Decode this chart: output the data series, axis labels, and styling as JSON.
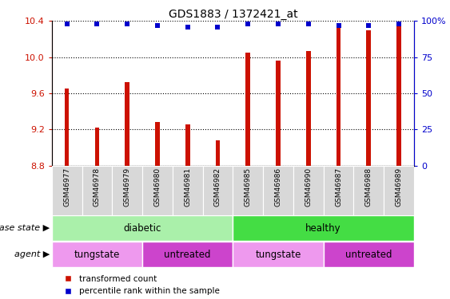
{
  "title": "GDS1883 / 1372421_at",
  "samples": [
    "GSM46977",
    "GSM46978",
    "GSM46979",
    "GSM46980",
    "GSM46981",
    "GSM46982",
    "GSM46985",
    "GSM46986",
    "GSM46990",
    "GSM46987",
    "GSM46988",
    "GSM46989"
  ],
  "bar_values": [
    9.65,
    9.22,
    9.72,
    9.28,
    9.26,
    9.08,
    10.05,
    9.96,
    10.07,
    10.32,
    10.3,
    10.38
  ],
  "percentile_y": [
    98,
    98,
    98,
    97,
    96,
    96,
    98,
    98,
    98,
    97,
    97,
    98
  ],
  "ylim_left": [
    8.8,
    10.4
  ],
  "ylim_right": [
    0,
    100
  ],
  "yticks_left": [
    8.8,
    9.2,
    9.6,
    10.0,
    10.4
  ],
  "yticks_right": [
    0,
    25,
    50,
    75,
    100
  ],
  "bar_color": "#cc1100",
  "percentile_color": "#0000cc",
  "bg_color": "#ffffff",
  "disease_state_groups": [
    {
      "label": "diabetic",
      "start": 0,
      "end": 6,
      "color": "#aaf0aa"
    },
    {
      "label": "healthy",
      "start": 6,
      "end": 12,
      "color": "#44dd44"
    }
  ],
  "agent_groups": [
    {
      "label": "tungstate",
      "start": 0,
      "end": 3,
      "color": "#ee99ee"
    },
    {
      "label": "untreated",
      "start": 3,
      "end": 6,
      "color": "#cc44cc"
    },
    {
      "label": "tungstate",
      "start": 6,
      "end": 9,
      "color": "#ee99ee"
    },
    {
      "label": "untreated",
      "start": 9,
      "end": 12,
      "color": "#cc44cc"
    }
  ],
  "disease_label": "disease state",
  "agent_label": "agent"
}
